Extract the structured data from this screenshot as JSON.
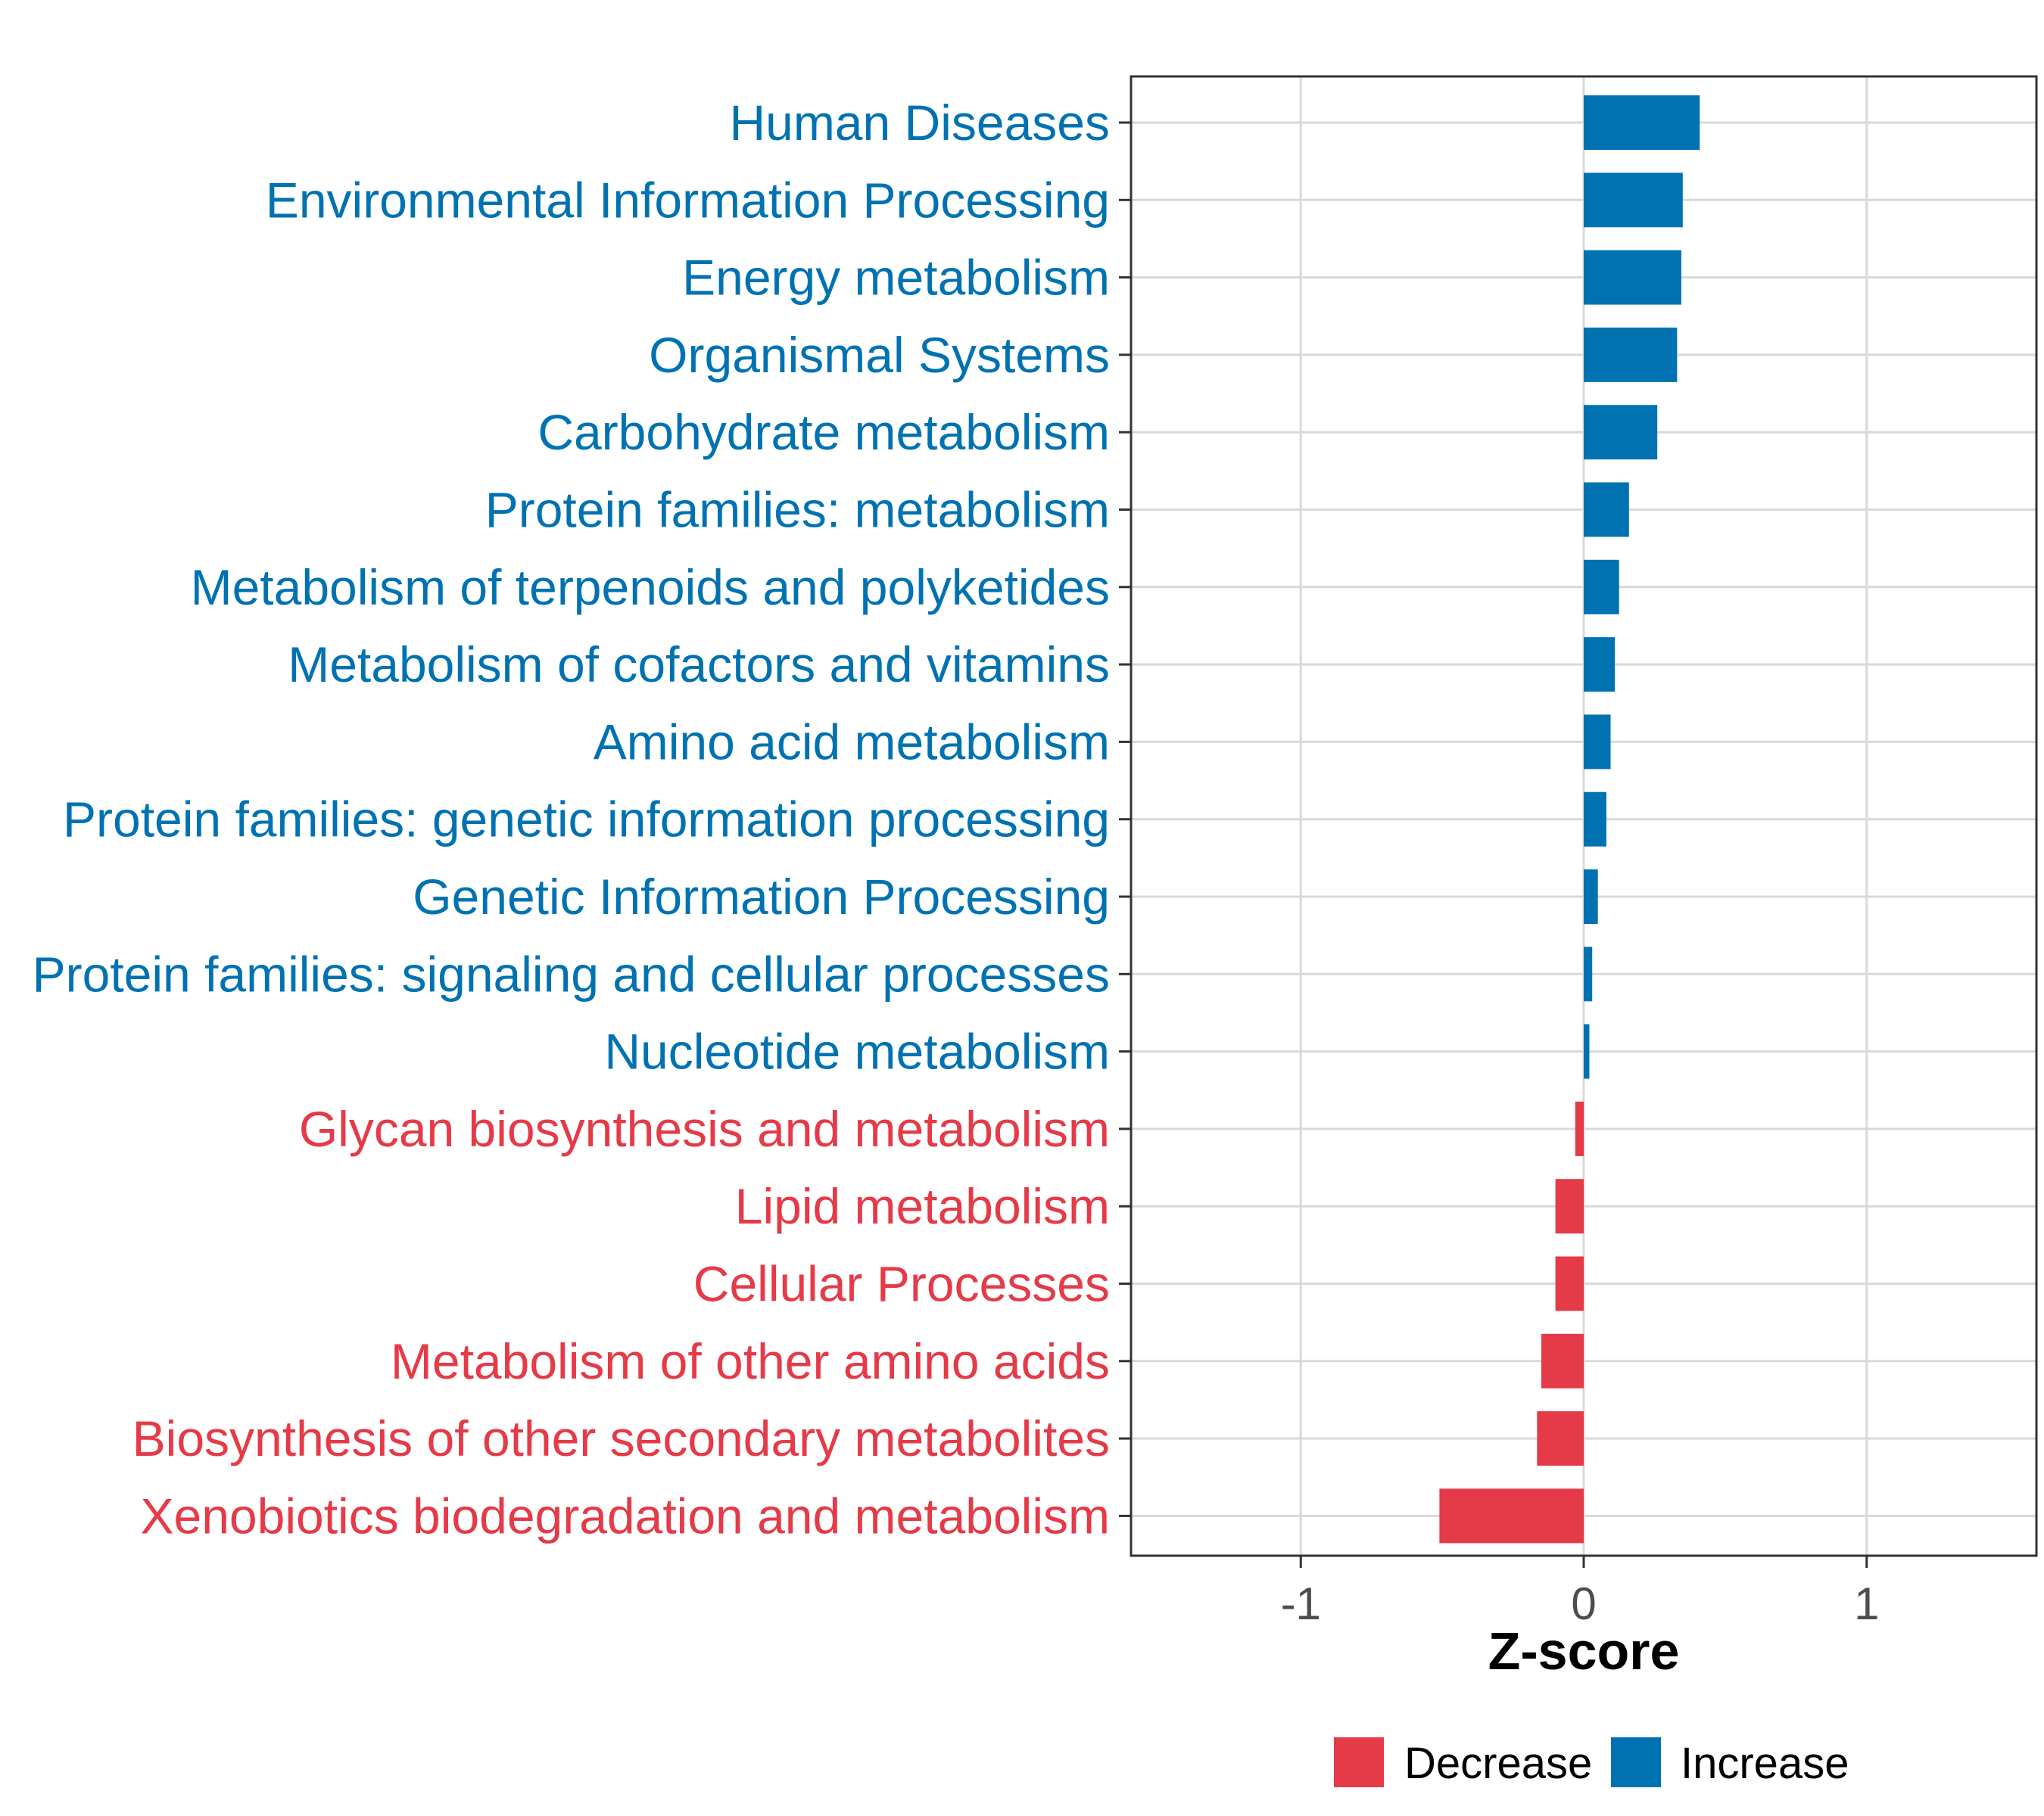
{
  "colors": {
    "increase": "#0072b2",
    "decrease": "#e53a47",
    "grid": "#d9d9d9",
    "panel_border": "#333333",
    "tick_text": "#4d4d4d"
  },
  "chart_data": {
    "type": "bar",
    "orientation": "horizontal",
    "xlabel": "Z-score",
    "ylabel": "",
    "xlim": [
      -1.6,
      1.6
    ],
    "xticks": [
      -1,
      0,
      1
    ],
    "xtick_labels": [
      "-1",
      "0",
      "1"
    ],
    "grid": true,
    "categories": [
      "Human Diseases",
      "Environmental Information Processing",
      "Energy metabolism",
      "Organismal Systems",
      "Carbohydrate metabolism",
      "Protein families: metabolism",
      "Metabolism of terpenoids and polyketides",
      "Metabolism of cofactors and vitamins",
      "Amino acid metabolism",
      "Protein families: genetic information processing",
      "Genetic Information Processing",
      "Protein families: signaling and cellular processes",
      "Nucleotide metabolism",
      "Glycan biosynthesis and metabolism",
      "Lipid metabolism",
      "Cellular Processes",
      "Metabolism of other amino acids",
      "Biosynthesis of other secondary metabolites",
      "Xenobiotics biodegradation and metabolism"
    ],
    "values": [
      0.41,
      0.35,
      0.345,
      0.33,
      0.26,
      0.16,
      0.125,
      0.11,
      0.095,
      0.08,
      0.05,
      0.03,
      0.02,
      -0.03,
      -0.1,
      -0.1,
      -0.15,
      -0.165,
      -0.51
    ],
    "groups": [
      "Increase",
      "Increase",
      "Increase",
      "Increase",
      "Increase",
      "Increase",
      "Increase",
      "Increase",
      "Increase",
      "Increase",
      "Increase",
      "Increase",
      "Increase",
      "Decrease",
      "Decrease",
      "Decrease",
      "Decrease",
      "Decrease",
      "Decrease"
    ],
    "legend": {
      "position": "bottom",
      "entries": [
        {
          "label": "Decrease",
          "group": "Decrease"
        },
        {
          "label": "Increase",
          "group": "Increase"
        }
      ]
    }
  }
}
